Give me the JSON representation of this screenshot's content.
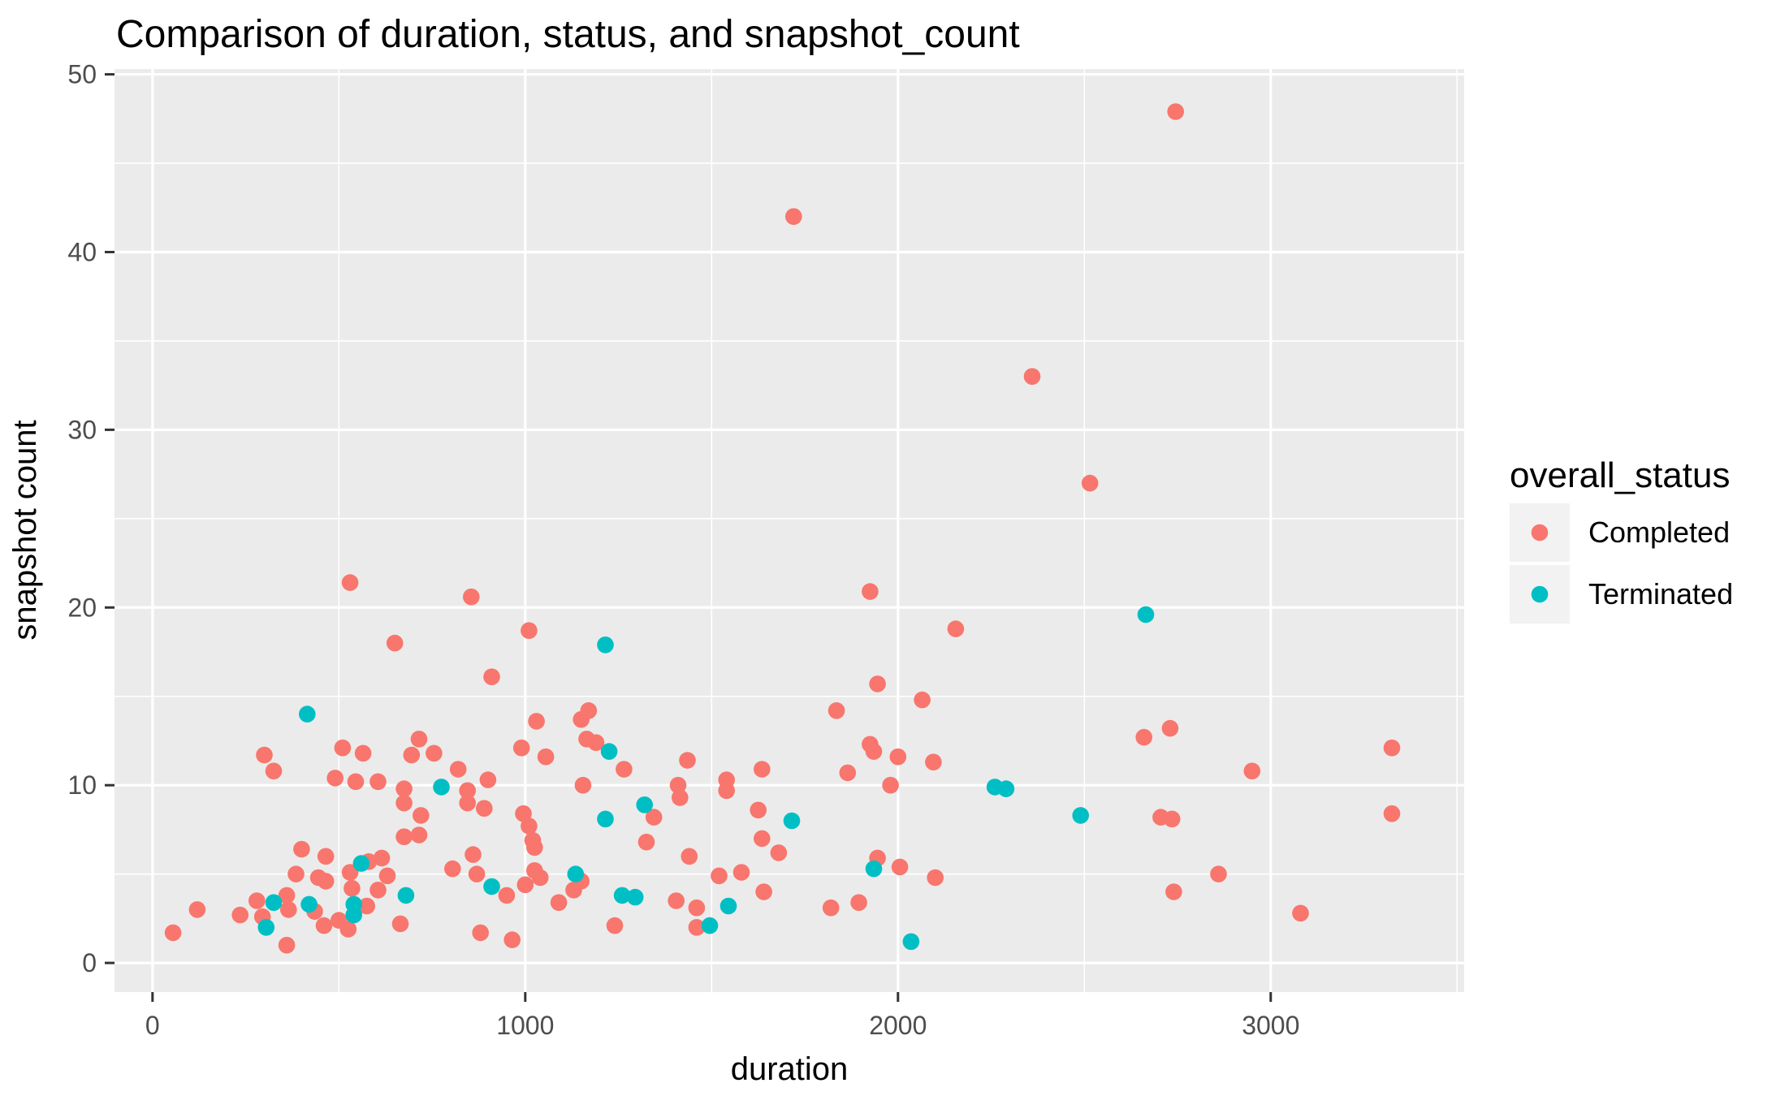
{
  "chart_data": {
    "type": "scatter",
    "title": "Comparison of duration, status, and snapshot_count",
    "xlabel": "duration",
    "ylabel": "snapshot count",
    "legend_title": "overall_status",
    "legend_position": "right",
    "grid": "on",
    "panel_bg": "#EBEBEB",
    "grid_color": "#FFFFFF",
    "legend_key_bg": "#F2F2F2",
    "tick_label_color": "#4D4D4D",
    "tick_mark_color": "#333333",
    "text_color": "#000000",
    "xlim": [
      -102,
      3519
    ],
    "ylim": [
      -1.64,
      50.3
    ],
    "x_ticks": [
      0,
      1000,
      2000,
      3000
    ],
    "y_ticks": [
      0,
      10,
      20,
      30,
      40,
      50
    ],
    "x_minor_ticks": [
      500,
      1500,
      2500,
      3500
    ],
    "y_minor_ticks": [
      5,
      15,
      25,
      35,
      45
    ],
    "point_radius_px": 10.3,
    "series": [
      {
        "name": "Completed",
        "color": "#F8766D",
        "points": [
          [
            55,
            1.7
          ],
          [
            120,
            3.0
          ],
          [
            235,
            2.7
          ],
          [
            280,
            3.5
          ],
          [
            295,
            2.6
          ],
          [
            300,
            11.7
          ],
          [
            325,
            10.8
          ],
          [
            360,
            3.8
          ],
          [
            360,
            1.0
          ],
          [
            365,
            3.0
          ],
          [
            385,
            5.0
          ],
          [
            400,
            6.4
          ],
          [
            435,
            2.9
          ],
          [
            445,
            4.8
          ],
          [
            460,
            2.1
          ],
          [
            465,
            6.0
          ],
          [
            465,
            4.6
          ],
          [
            490,
            10.4
          ],
          [
            500,
            2.4
          ],
          [
            510,
            12.1
          ],
          [
            525,
            1.9
          ],
          [
            530,
            21.4
          ],
          [
            530,
            5.1
          ],
          [
            535,
            4.2
          ],
          [
            545,
            10.2
          ],
          [
            565,
            11.8
          ],
          [
            575,
            3.2
          ],
          [
            580,
            5.7
          ],
          [
            605,
            10.2
          ],
          [
            605,
            4.1
          ],
          [
            615,
            5.9
          ],
          [
            630,
            4.9
          ],
          [
            650,
            18.0
          ],
          [
            665,
            2.2
          ],
          [
            675,
            9.8
          ],
          [
            675,
            9.0
          ],
          [
            675,
            7.1
          ],
          [
            695,
            11.7
          ],
          [
            715,
            12.6
          ],
          [
            715,
            7.2
          ],
          [
            720,
            8.3
          ],
          [
            755,
            11.8
          ],
          [
            805,
            5.3
          ],
          [
            820,
            10.9
          ],
          [
            845,
            9.7
          ],
          [
            845,
            9.0
          ],
          [
            855,
            20.6
          ],
          [
            860,
            6.1
          ],
          [
            870,
            5.0
          ],
          [
            880,
            1.7
          ],
          [
            890,
            8.7
          ],
          [
            900,
            10.3
          ],
          [
            910,
            16.1
          ],
          [
            950,
            3.8
          ],
          [
            965,
            1.3
          ],
          [
            990,
            12.1
          ],
          [
            995,
            8.4
          ],
          [
            1000,
            4.4
          ],
          [
            1010,
            18.7
          ],
          [
            1010,
            7.7
          ],
          [
            1020,
            6.9
          ],
          [
            1025,
            6.5
          ],
          [
            1025,
            5.2
          ],
          [
            1030,
            13.6
          ],
          [
            1040,
            4.8
          ],
          [
            1055,
            11.6
          ],
          [
            1090,
            3.4
          ],
          [
            1130,
            4.1
          ],
          [
            1150,
            13.7
          ],
          [
            1150,
            4.6
          ],
          [
            1155,
            10.0
          ],
          [
            1165,
            12.6
          ],
          [
            1170,
            14.2
          ],
          [
            1190,
            12.4
          ],
          [
            1240,
            2.1
          ],
          [
            1265,
            10.9
          ],
          [
            1325,
            6.8
          ],
          [
            1345,
            8.2
          ],
          [
            1405,
            3.5
          ],
          [
            1410,
            10.0
          ],
          [
            1415,
            9.3
          ],
          [
            1435,
            11.4
          ],
          [
            1440,
            6.0
          ],
          [
            1460,
            3.1
          ],
          [
            1460,
            2.0
          ],
          [
            1520,
            4.9
          ],
          [
            1540,
            10.3
          ],
          [
            1540,
            9.7
          ],
          [
            1580,
            5.1
          ],
          [
            1625,
            8.6
          ],
          [
            1635,
            10.9
          ],
          [
            1635,
            7.0
          ],
          [
            1640,
            4.0
          ],
          [
            1680,
            6.2
          ],
          [
            1720,
            42.0
          ],
          [
            1820,
            3.1
          ],
          [
            1835,
            14.2
          ],
          [
            1865,
            10.7
          ],
          [
            1895,
            3.4
          ],
          [
            1925,
            20.9
          ],
          [
            1925,
            12.3
          ],
          [
            1935,
            11.9
          ],
          [
            1945,
            15.7
          ],
          [
            1945,
            5.9
          ],
          [
            1980,
            10.0
          ],
          [
            2000,
            11.6
          ],
          [
            2005,
            5.4
          ],
          [
            2065,
            14.8
          ],
          [
            2095,
            11.3
          ],
          [
            2100,
            4.8
          ],
          [
            2155,
            18.8
          ],
          [
            2360,
            33.0
          ],
          [
            2515,
            27.0
          ],
          [
            2660,
            12.7
          ],
          [
            2705,
            8.2
          ],
          [
            2730,
            13.2
          ],
          [
            2735,
            8.1
          ],
          [
            2740,
            4.0
          ],
          [
            2745,
            47.9
          ],
          [
            2860,
            5.0
          ],
          [
            2950,
            10.8
          ],
          [
            3080,
            2.8
          ],
          [
            3325,
            12.1
          ],
          [
            3325,
            8.4
          ]
        ]
      },
      {
        "name": "Terminated",
        "color": "#00BFC4",
        "points": [
          [
            305,
            2.0
          ],
          [
            325,
            3.4
          ],
          [
            415,
            14.0
          ],
          [
            420,
            3.3
          ],
          [
            540,
            3.3
          ],
          [
            540,
            2.7
          ],
          [
            560,
            5.6
          ],
          [
            680,
            3.8
          ],
          [
            775,
            9.9
          ],
          [
            910,
            4.3
          ],
          [
            1135,
            5.0
          ],
          [
            1215,
            17.9
          ],
          [
            1215,
            8.1
          ],
          [
            1225,
            11.9
          ],
          [
            1260,
            3.8
          ],
          [
            1295,
            3.7
          ],
          [
            1320,
            8.9
          ],
          [
            1495,
            2.1
          ],
          [
            1545,
            3.2
          ],
          [
            1715,
            8.0
          ],
          [
            1935,
            5.3
          ],
          [
            2035,
            1.2
          ],
          [
            2260,
            9.9
          ],
          [
            2290,
            9.8
          ],
          [
            2490,
            8.3
          ],
          [
            2665,
            19.6
          ]
        ]
      }
    ]
  }
}
